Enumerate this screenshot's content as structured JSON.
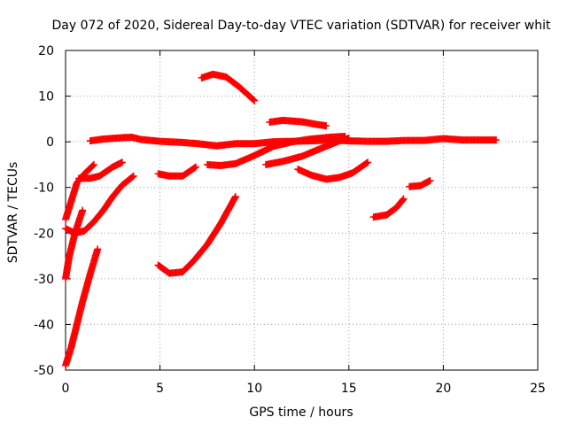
{
  "chart_data": {
    "type": "scatter",
    "title": "Day 072 of 2020, Sidereal Day-to-day VTEC variation (SDTVAR) for receiver whit",
    "xlabel": "GPS time / hours",
    "ylabel": "SDTVAR / TECUs",
    "xlim": [
      0,
      25
    ],
    "ylim": [
      -50,
      20
    ],
    "xticks": [
      0,
      5,
      10,
      15,
      20,
      25
    ],
    "yticks": [
      -50,
      -40,
      -30,
      -20,
      -10,
      0,
      10,
      20
    ],
    "grid": true,
    "marker": "+",
    "color": "#ff0000",
    "series": [
      {
        "points": [
          [
            1.3,
            0.2
          ],
          [
            2.0,
            0.6
          ],
          [
            3.0,
            0.9
          ],
          [
            3.5,
            1.0
          ],
          [
            4.0,
            0.5
          ],
          [
            5.0,
            0.1
          ],
          [
            6.0,
            -0.1
          ],
          [
            7.0,
            -0.4
          ],
          [
            8.0,
            -0.9
          ],
          [
            9.0,
            -0.4
          ],
          [
            10.0,
            -0.4
          ],
          [
            11.0,
            0.0
          ],
          [
            12.0,
            0.1
          ],
          [
            13.0,
            0.2
          ],
          [
            14.0,
            0.4
          ],
          [
            15.0,
            0.2
          ],
          [
            16.0,
            0.1
          ],
          [
            17.0,
            0.1
          ],
          [
            18.0,
            0.3
          ],
          [
            19.0,
            0.3
          ],
          [
            20.0,
            0.7
          ],
          [
            21.0,
            0.4
          ],
          [
            22.0,
            0.4
          ],
          [
            22.8,
            0.4
          ]
        ]
      },
      {
        "points": [
          [
            0.0,
            -17.0
          ],
          [
            0.3,
            -13.0
          ],
          [
            0.6,
            -9.0
          ],
          [
            1.0,
            -7.0
          ],
          [
            1.5,
            -5.0
          ]
        ]
      },
      {
        "points": [
          [
            0.7,
            -8.0
          ],
          [
            1.3,
            -8.0
          ],
          [
            1.8,
            -7.5
          ],
          [
            2.5,
            -5.5
          ],
          [
            3.0,
            -4.5
          ]
        ]
      },
      {
        "points": [
          [
            0.0,
            -19.0
          ],
          [
            0.5,
            -20.0
          ],
          [
            1.0,
            -19.5
          ],
          [
            1.5,
            -17.5
          ],
          [
            2.0,
            -15.0
          ],
          [
            2.5,
            -12.0
          ],
          [
            3.0,
            -9.5
          ],
          [
            3.6,
            -7.5
          ]
        ]
      },
      {
        "points": [
          [
            0.0,
            -30.0
          ],
          [
            0.2,
            -25.0
          ],
          [
            0.5,
            -20.0
          ],
          [
            0.9,
            -15.0
          ]
        ]
      },
      {
        "points": [
          [
            0.0,
            -49.0
          ],
          [
            0.3,
            -45.0
          ],
          [
            0.6,
            -40.0
          ],
          [
            0.9,
            -35.0
          ],
          [
            1.3,
            -29.0
          ],
          [
            1.7,
            -23.5
          ]
        ]
      },
      {
        "points": [
          [
            4.9,
            -7.0
          ],
          [
            5.5,
            -7.5
          ],
          [
            6.2,
            -7.5
          ],
          [
            6.9,
            -5.5
          ]
        ]
      },
      {
        "points": [
          [
            4.9,
            -27.0
          ],
          [
            5.5,
            -28.8
          ],
          [
            6.2,
            -28.5
          ],
          [
            6.8,
            -26.0
          ],
          [
            7.5,
            -22.5
          ],
          [
            8.2,
            -18.0
          ],
          [
            8.8,
            -13.5
          ],
          [
            9.0,
            -12.0
          ]
        ]
      },
      {
        "points": [
          [
            7.2,
            14.0
          ],
          [
            7.8,
            14.8
          ],
          [
            8.5,
            14.2
          ],
          [
            9.2,
            12.0
          ],
          [
            10.0,
            9.0
          ]
        ]
      },
      {
        "points": [
          [
            7.5,
            -5.0
          ],
          [
            8.2,
            -5.2
          ],
          [
            9.0,
            -4.8
          ],
          [
            10.0,
            -3.0
          ],
          [
            11.0,
            -1.0
          ],
          [
            12.0,
            0.0
          ],
          [
            13.0,
            0.6
          ],
          [
            14.0,
            1.0
          ],
          [
            14.8,
            1.2
          ]
        ]
      },
      {
        "points": [
          [
            10.8,
            4.3
          ],
          [
            11.5,
            4.7
          ],
          [
            12.5,
            4.4
          ],
          [
            13.3,
            3.8
          ],
          [
            13.8,
            3.5
          ]
        ]
      },
      {
        "points": [
          [
            10.6,
            -5.0
          ],
          [
            11.5,
            -4.3
          ],
          [
            12.5,
            -3.2
          ],
          [
            13.5,
            -1.5
          ],
          [
            14.5,
            0.2
          ],
          [
            15.0,
            0.8
          ]
        ]
      },
      {
        "points": [
          [
            12.3,
            -6.0
          ],
          [
            13.0,
            -7.3
          ],
          [
            13.8,
            -8.2
          ],
          [
            14.5,
            -7.8
          ],
          [
            15.2,
            -6.8
          ],
          [
            16.0,
            -4.5
          ]
        ]
      },
      {
        "points": [
          [
            16.3,
            -16.5
          ],
          [
            17.0,
            -16.0
          ],
          [
            17.5,
            -14.5
          ],
          [
            17.9,
            -12.5
          ]
        ]
      },
      {
        "points": [
          [
            18.2,
            -9.8
          ],
          [
            18.8,
            -9.6
          ],
          [
            19.3,
            -8.5
          ]
        ]
      }
    ]
  }
}
